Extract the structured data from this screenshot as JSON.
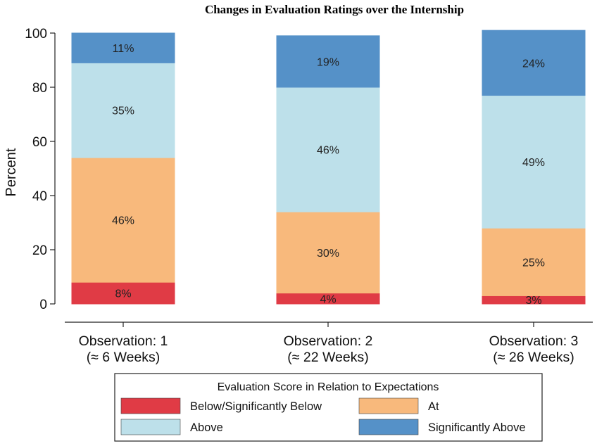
{
  "chart_data": {
    "type": "bar",
    "stacked": true,
    "title": "Changes in Evaluation Ratings over the Internship",
    "ylabel": "Percent",
    "ylim": [
      0,
      100
    ],
    "yticks": [
      "0",
      "20",
      "40",
      "60",
      "80",
      "100"
    ],
    "categories": [
      [
        "Observation: 1",
        "(≈ 6 Weeks)"
      ],
      [
        "Observation: 2",
        "(≈ 22 Weeks)"
      ],
      [
        "Observation: 3",
        "(≈ 26 Weeks)"
      ]
    ],
    "series": [
      {
        "name": "Below/Significantly Below",
        "color": "#e03b45",
        "values": [
          8,
          4,
          3
        ],
        "labels": [
          "8%",
          "4%",
          "3%"
        ]
      },
      {
        "name": "At",
        "color": "#f8b97c",
        "values": [
          46,
          30,
          25
        ],
        "labels": [
          "46%",
          "30%",
          "25%"
        ]
      },
      {
        "name": "Above",
        "color": "#bde0ea",
        "values": [
          35,
          46,
          49
        ],
        "labels": [
          "35%",
          "46%",
          "49%"
        ]
      },
      {
        "name": "Significantly Above",
        "color": "#5591c8",
        "values": [
          11,
          19,
          24
        ],
        "labels": [
          "11%",
          "19%",
          "24%"
        ]
      }
    ],
    "legend": {
      "title": "Evaluation Score in Relation to Expectations",
      "placement": "bottom"
    },
    "grid": false
  }
}
